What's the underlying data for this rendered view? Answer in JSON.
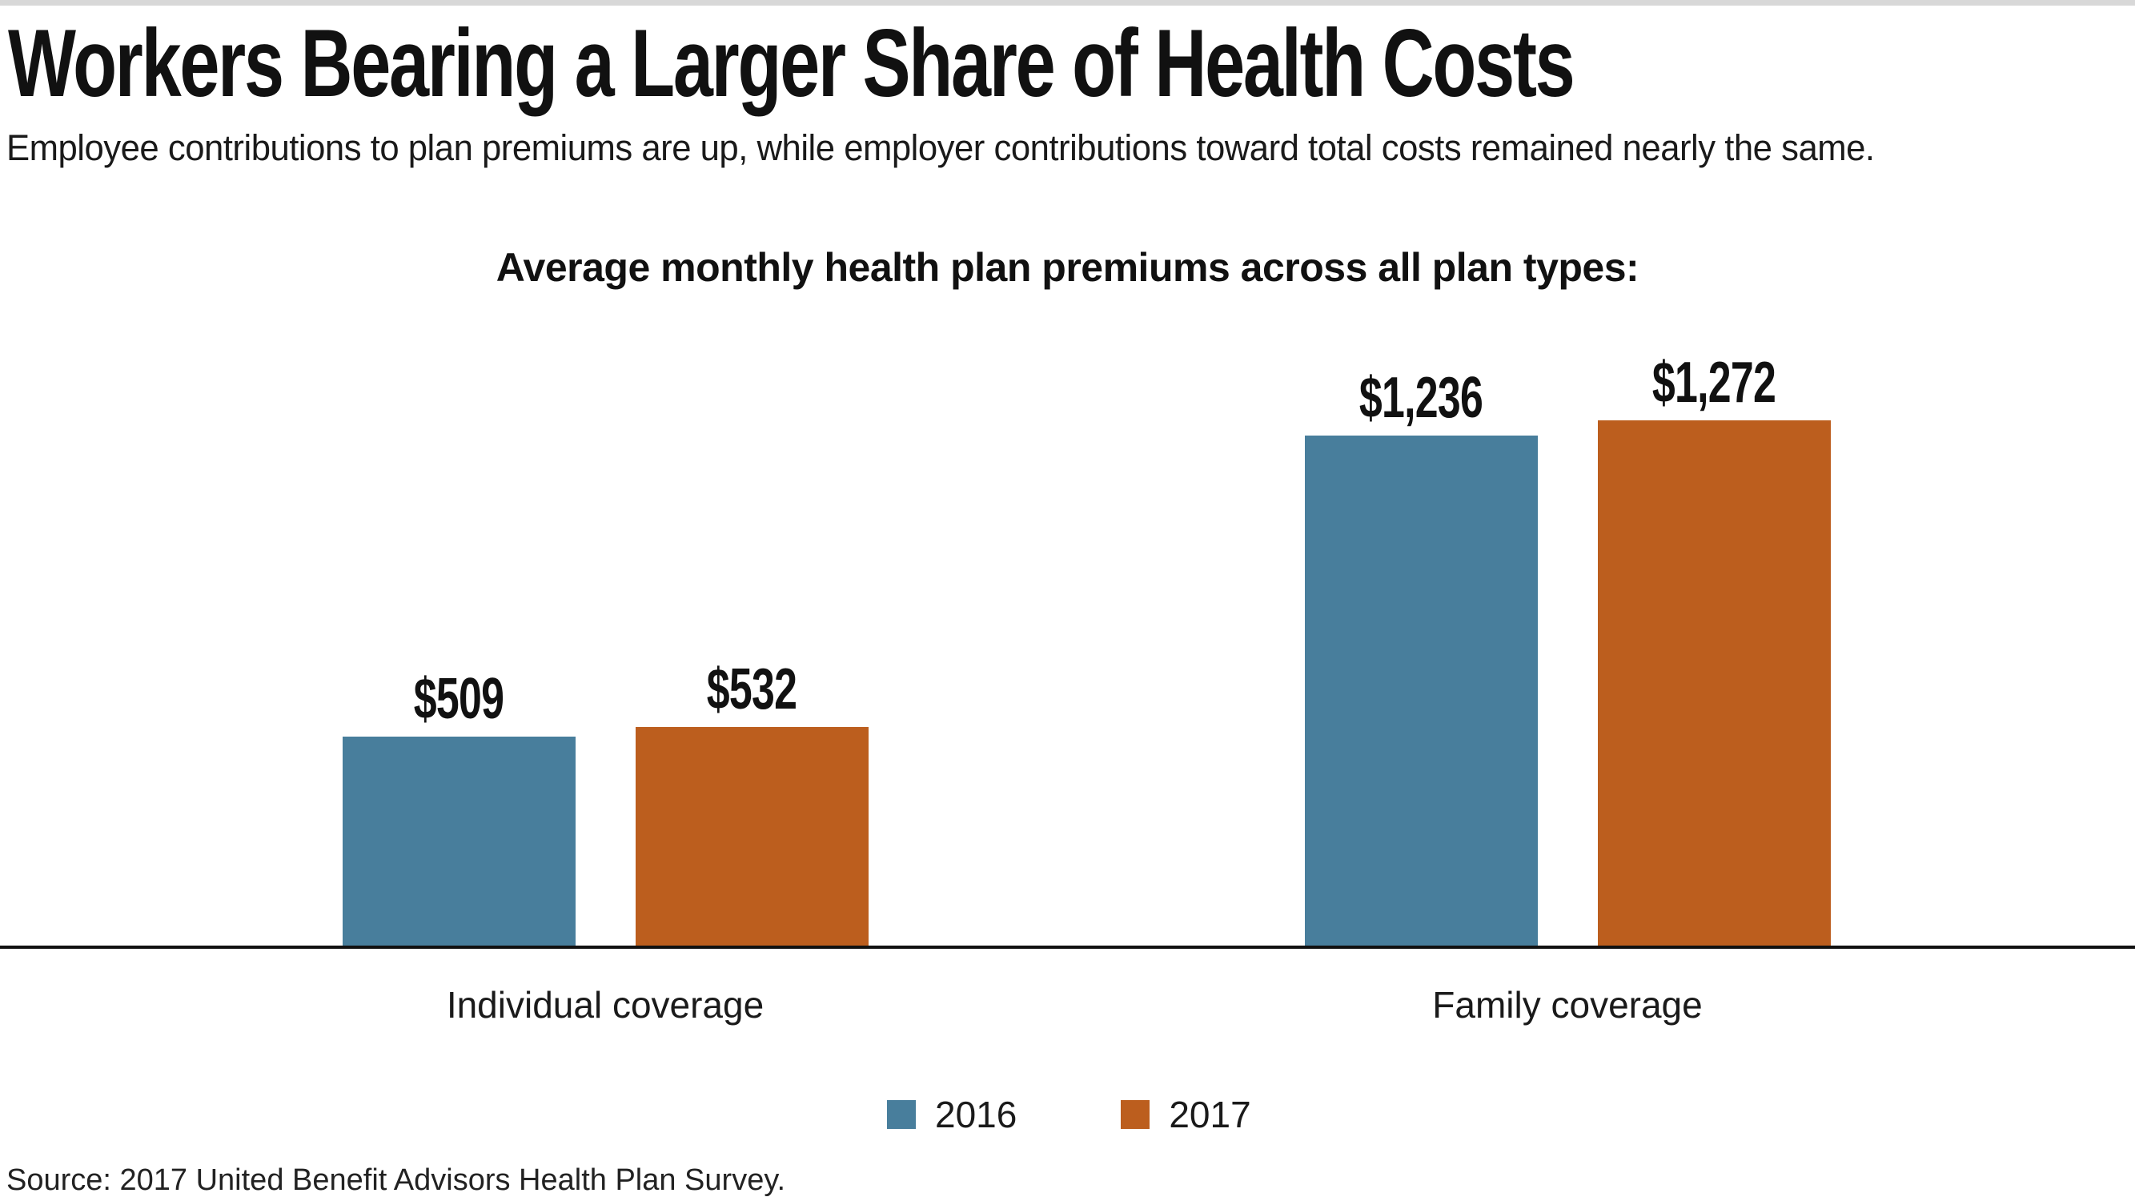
{
  "page": {
    "title": "Workers Bearing a Larger Share of Health Costs",
    "subtitle": "Employee contributions to plan premiums are up, while employer contributions toward total costs remained nearly the same.",
    "source": "Source: 2017 United Benefit Advisors Health Plan Survey."
  },
  "chart_data": {
    "type": "bar",
    "title": "Average monthly health plan premiums across all plan types:",
    "categories": [
      "Individual coverage",
      "Family coverage"
    ],
    "series": [
      {
        "name": "2016",
        "color": "#487E9C",
        "values": [
          509,
          1236
        ],
        "labels": [
          "$509",
          "$1,236"
        ]
      },
      {
        "name": "2017",
        "color": "#BC5E1E",
        "values": [
          532,
          1272
        ],
        "labels": [
          "$532",
          "$1,272"
        ]
      }
    ],
    "value_prefix": "$",
    "ylim": [
      0,
      1400
    ],
    "grid": false,
    "legend_position": "bottom",
    "xlabel": "",
    "ylabel": ""
  },
  "colors": {
    "series_2016": "#487E9C",
    "series_2017": "#BC5E1E",
    "top_strip": "#d8d8d8",
    "axis": "#111111",
    "text": "#1a1a1a"
  }
}
